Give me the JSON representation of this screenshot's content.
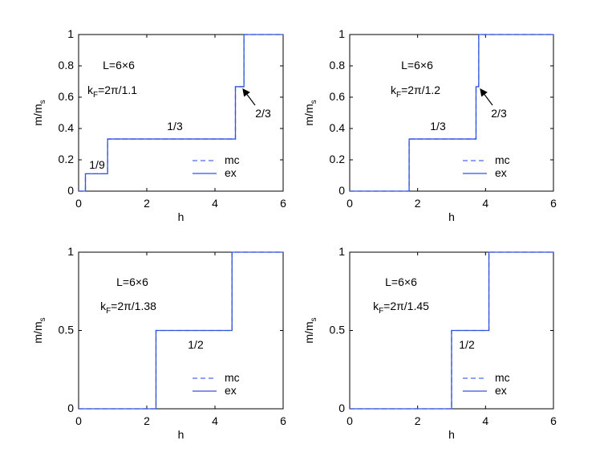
{
  "chart_data": [
    {
      "type": "line",
      "xlabel": "h",
      "ylabel": "m/m_s",
      "xlim": [
        0,
        6
      ],
      "ylim": [
        0,
        1
      ],
      "xticks": [
        0,
        2,
        4,
        6
      ],
      "yticks": [
        0,
        0.2,
        0.4,
        0.6,
        0.8,
        1
      ],
      "x": [
        0,
        0.2,
        0.2,
        0.85,
        0.85,
        4.6,
        4.6,
        4.85,
        4.85,
        6
      ],
      "series": [
        {
          "name": "mc",
          "color": "#4a6cf0",
          "dash": true,
          "values": [
            0,
            0,
            0.111,
            0.111,
            0.333,
            0.333,
            0.667,
            0.667,
            1,
            1
          ]
        },
        {
          "name": "ex",
          "color": "#3355dd",
          "dash": false,
          "values": [
            0,
            0,
            0.111,
            0.111,
            0.333,
            0.333,
            0.667,
            0.667,
            1,
            1
          ]
        }
      ],
      "annotations": [
        "L=6×6",
        "k_F=2π/1.1",
        "1/9",
        "1/3",
        "2/3"
      ]
    },
    {
      "type": "line",
      "xlabel": "h",
      "ylabel": "m/m_s",
      "xlim": [
        0,
        6
      ],
      "ylim": [
        0,
        1
      ],
      "xticks": [
        0,
        2,
        4,
        6
      ],
      "yticks": [
        0,
        0.2,
        0.4,
        0.6,
        0.8,
        1
      ],
      "x": [
        0,
        1.75,
        1.75,
        3.72,
        3.72,
        3.8,
        3.8,
        6
      ],
      "series": [
        {
          "name": "mc",
          "color": "#4a6cf0",
          "dash": true,
          "values": [
            0,
            0,
            0.333,
            0.333,
            0.667,
            0.667,
            1,
            1
          ]
        },
        {
          "name": "ex",
          "color": "#3355dd",
          "dash": false,
          "values": [
            0,
            0,
            0.333,
            0.333,
            0.667,
            0.667,
            1,
            1
          ]
        }
      ],
      "annotations": [
        "L=6×6",
        "k_F=2π/1.2",
        "1/3",
        "2/3"
      ]
    },
    {
      "type": "line",
      "xlabel": "h",
      "ylabel": "m/m_s",
      "xlim": [
        0,
        6
      ],
      "ylim": [
        0,
        1
      ],
      "xticks": [
        0,
        2,
        4,
        6
      ],
      "yticks": [
        0,
        0.5,
        1
      ],
      "x": [
        0,
        2.27,
        2.27,
        4.5,
        4.5,
        6
      ],
      "series": [
        {
          "name": "mc",
          "color": "#4a6cf0",
          "dash": true,
          "values": [
            0,
            0,
            0.5,
            0.5,
            1,
            1
          ]
        },
        {
          "name": "ex",
          "color": "#3355dd",
          "dash": false,
          "values": [
            0,
            0,
            0.5,
            0.5,
            1,
            1
          ]
        }
      ],
      "annotations": [
        "L=6×6",
        "k_F=2π/1.38",
        "1/2"
      ]
    },
    {
      "type": "line",
      "xlabel": "h",
      "ylabel": "m/m_s",
      "xlim": [
        0,
        6
      ],
      "ylim": [
        0,
        1
      ],
      "xticks": [
        0,
        2,
        4,
        6
      ],
      "yticks": [
        0,
        0.5,
        1
      ],
      "x": [
        0,
        3.0,
        3.0,
        4.1,
        4.1,
        6
      ],
      "series": [
        {
          "name": "mc",
          "color": "#4a6cf0",
          "dash": true,
          "values": [
            0,
            0,
            0.5,
            0.5,
            1,
            1
          ]
        },
        {
          "name": "ex",
          "color": "#3355dd",
          "dash": false,
          "values": [
            0,
            0,
            0.5,
            0.5,
            1,
            1
          ]
        }
      ],
      "annotations": [
        "L=6×6",
        "k_F=2π/1.45",
        "1/2"
      ]
    }
  ]
}
